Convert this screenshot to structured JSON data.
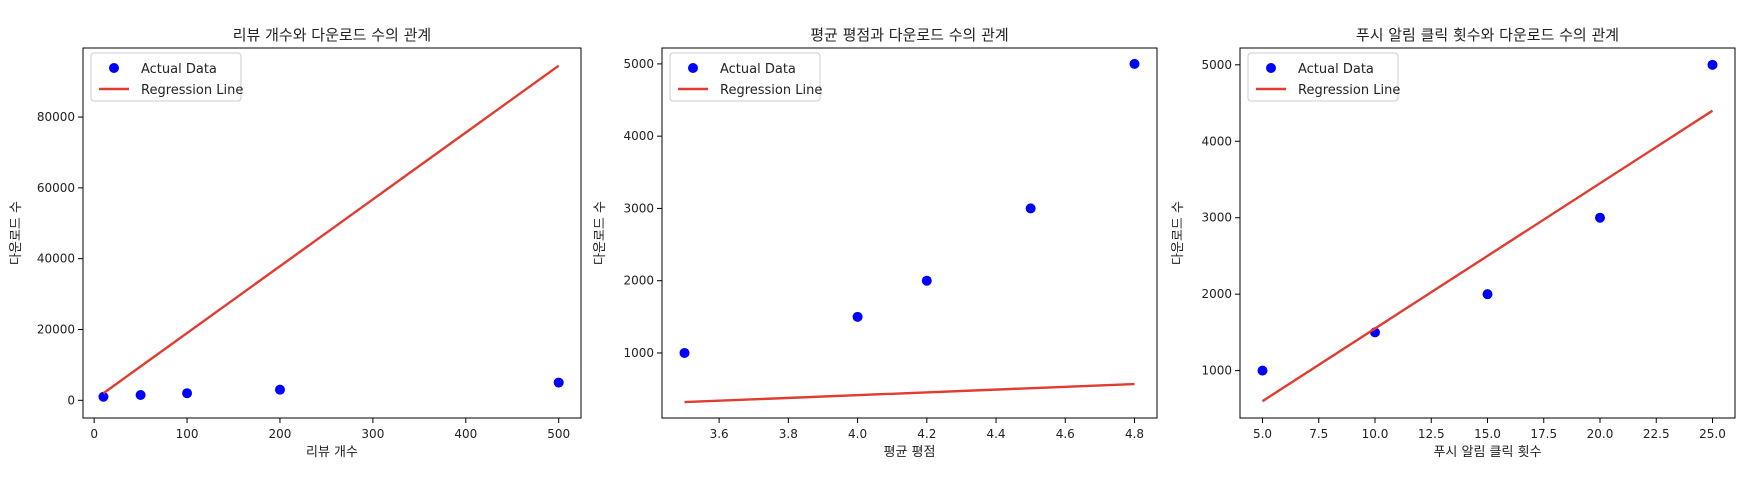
{
  "chart_data": [
    {
      "type": "scatter",
      "title": "리뷰 개수와 다운로드 수의 관계",
      "xlabel": "리뷰 개수",
      "ylabel": "다운로드 수",
      "xlim": [
        -12,
        524
      ],
      "ylim": [
        -5000,
        99500
      ],
      "xticks": [
        0,
        100,
        200,
        300,
        400,
        500
      ],
      "yticks": [
        0,
        20000,
        40000,
        60000,
        80000
      ],
      "series": [
        {
          "name": "Actual Data",
          "type": "scatter",
          "color": "#0000ff",
          "x": [
            10,
            50,
            100,
            200,
            500
          ],
          "y": [
            1000,
            1500,
            2000,
            3000,
            5000
          ]
        },
        {
          "name": "Regression Line",
          "type": "line",
          "color": "#e03c31",
          "x": [
            10,
            500
          ],
          "y": [
            2000,
            94500
          ]
        }
      ],
      "legend": "top-left"
    },
    {
      "type": "scatter",
      "title": "평균 평점과 다운로드 수의 관계",
      "xlabel": "평균 평점",
      "ylabel": "다운로드 수",
      "xlim": [
        3.435,
        4.865
      ],
      "ylim": [
        100,
        5220
      ],
      "xticks": [
        3.6,
        3.8,
        4.0,
        4.2,
        4.4,
        4.6,
        4.8
      ],
      "yticks": [
        1000,
        2000,
        3000,
        4000,
        5000
      ],
      "series": [
        {
          "name": "Actual Data",
          "type": "scatter",
          "color": "#0000ff",
          "x": [
            3.5,
            4.0,
            4.2,
            4.5,
            4.8
          ],
          "y": [
            1000,
            1500,
            2000,
            3000,
            5000
          ]
        },
        {
          "name": "Regression Line",
          "type": "line",
          "color": "#e03c31",
          "x": [
            3.5,
            4.8
          ],
          "y": [
            320,
            570
          ]
        }
      ],
      "legend": "top-left"
    },
    {
      "type": "scatter",
      "title": "푸시 알림 클릭 횟수와 다운로드 수의 관계",
      "xlabel": "푸시 알림 클릭 횟수",
      "ylabel": "다운로드 수",
      "xlim": [
        4.0,
        26.0
      ],
      "ylim": [
        380,
        5220
      ],
      "xticks": [
        5.0,
        7.5,
        10.0,
        12.5,
        15.0,
        17.5,
        20.0,
        22.5,
        25.0
      ],
      "yticks": [
        1000,
        2000,
        3000,
        4000,
        5000
      ],
      "series": [
        {
          "name": "Actual Data",
          "type": "scatter",
          "color": "#0000ff",
          "x": [
            5,
            10,
            15,
            20,
            25
          ],
          "y": [
            1000,
            1500,
            2000,
            3000,
            5000
          ]
        },
        {
          "name": "Regression Line",
          "type": "line",
          "color": "#e03c31",
          "x": [
            5,
            25
          ],
          "y": [
            600,
            4400
          ]
        }
      ],
      "legend": "top-left"
    }
  ]
}
